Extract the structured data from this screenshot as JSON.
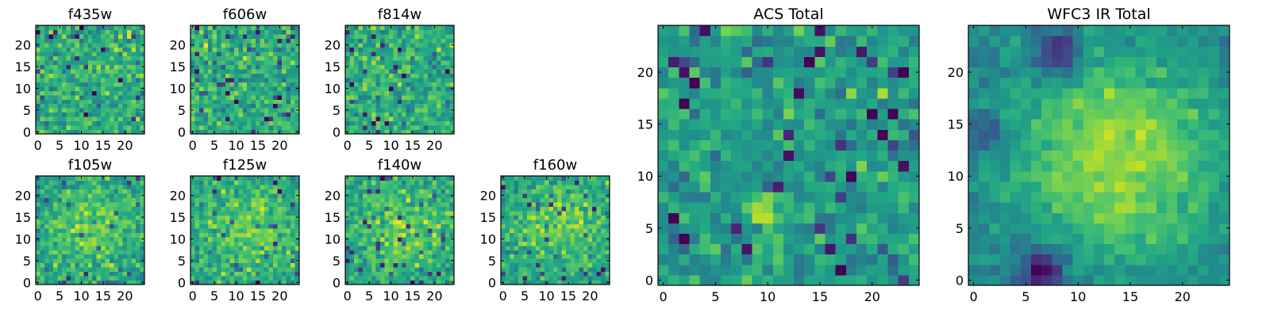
{
  "chart_data": [
    {
      "type": "heatmap",
      "title": "f435w",
      "x_ticks": [
        0,
        5,
        10,
        15,
        20
      ],
      "y_ticks": [
        0,
        5,
        10,
        15,
        20
      ],
      "xlim": [
        -0.5,
        24.5
      ],
      "ylim": [
        -0.5,
        24.5
      ],
      "grid_size": [
        25,
        25
      ],
      "colormap": "viridis",
      "pattern": "uniform noise, no structure"
    },
    {
      "type": "heatmap",
      "title": "f606w",
      "x_ticks": [
        0,
        5,
        10,
        15,
        20
      ],
      "y_ticks": [
        0,
        5,
        10,
        15,
        20
      ],
      "xlim": [
        -0.5,
        24.5
      ],
      "ylim": [
        -0.5,
        24.5
      ],
      "grid_size": [
        25,
        25
      ],
      "colormap": "viridis",
      "pattern": "uniform noise, no structure"
    },
    {
      "type": "heatmap",
      "title": "f814w",
      "x_ticks": [
        0,
        5,
        10,
        15,
        20
      ],
      "y_ticks": [
        0,
        5,
        10,
        15,
        20
      ],
      "xlim": [
        -0.5,
        24.5
      ],
      "ylim": [
        -0.5,
        24.5
      ],
      "grid_size": [
        25,
        25
      ],
      "colormap": "viridis",
      "pattern": "uniform noise, no structure"
    },
    {
      "type": "heatmap",
      "title": "f105w",
      "x_ticks": [
        0,
        5,
        10,
        15,
        20
      ],
      "y_ticks": [
        0,
        5,
        10,
        15,
        20
      ],
      "xlim": [
        -0.5,
        24.5
      ],
      "ylim": [
        -0.5,
        24.5
      ],
      "grid_size": [
        25,
        25
      ],
      "colormap": "viridis",
      "pattern": "noise with faint central brightening"
    },
    {
      "type": "heatmap",
      "title": "f125w",
      "x_ticks": [
        0,
        5,
        10,
        15,
        20
      ],
      "y_ticks": [
        0,
        5,
        10,
        15,
        20
      ],
      "xlim": [
        -0.5,
        24.5
      ],
      "ylim": [
        -0.5,
        24.5
      ],
      "grid_size": [
        25,
        25
      ],
      "colormap": "viridis",
      "pattern": "noise with faint central brightening"
    },
    {
      "type": "heatmap",
      "title": "f140w",
      "x_ticks": [
        0,
        5,
        10,
        15,
        20
      ],
      "y_ticks": [
        0,
        5,
        10,
        15,
        20
      ],
      "xlim": [
        -0.5,
        24.5
      ],
      "ylim": [
        -0.5,
        24.5
      ],
      "grid_size": [
        25,
        25
      ],
      "colormap": "viridis",
      "pattern": "noise with faint central brightening"
    },
    {
      "type": "heatmap",
      "title": "f160w",
      "x_ticks": [
        0,
        5,
        10,
        15,
        20
      ],
      "y_ticks": [
        0,
        5,
        10,
        15,
        20
      ],
      "xlim": [
        -0.5,
        24.5
      ],
      "ylim": [
        -0.5,
        24.5
      ],
      "grid_size": [
        25,
        25
      ],
      "colormap": "viridis",
      "pattern": "noise with faint central brightening"
    },
    {
      "type": "heatmap",
      "title": "ACS Total",
      "x_ticks": [
        0,
        5,
        10,
        15,
        20
      ],
      "y_ticks": [
        0,
        5,
        10,
        15,
        20
      ],
      "xlim": [
        -0.5,
        24.5
      ],
      "ylim": [
        -0.5,
        24.5
      ],
      "grid_size": [
        25,
        25
      ],
      "colormap": "viridis",
      "pattern": "noise, bright patch near (10, 7)"
    },
    {
      "type": "heatmap",
      "title": "WFC3 IR Total",
      "x_ticks": [
        0,
        5,
        10,
        15,
        20
      ],
      "y_ticks": [
        0,
        5,
        10,
        15,
        20
      ],
      "xlim": [
        -0.5,
        24.5
      ],
      "ylim": [
        -0.5,
        24.5
      ],
      "grid_size": [
        25,
        25
      ],
      "colormap": "viridis",
      "pattern": "smooth diffuse emission, bright centre-right, dark patches lower-left and upper-left"
    }
  ]
}
